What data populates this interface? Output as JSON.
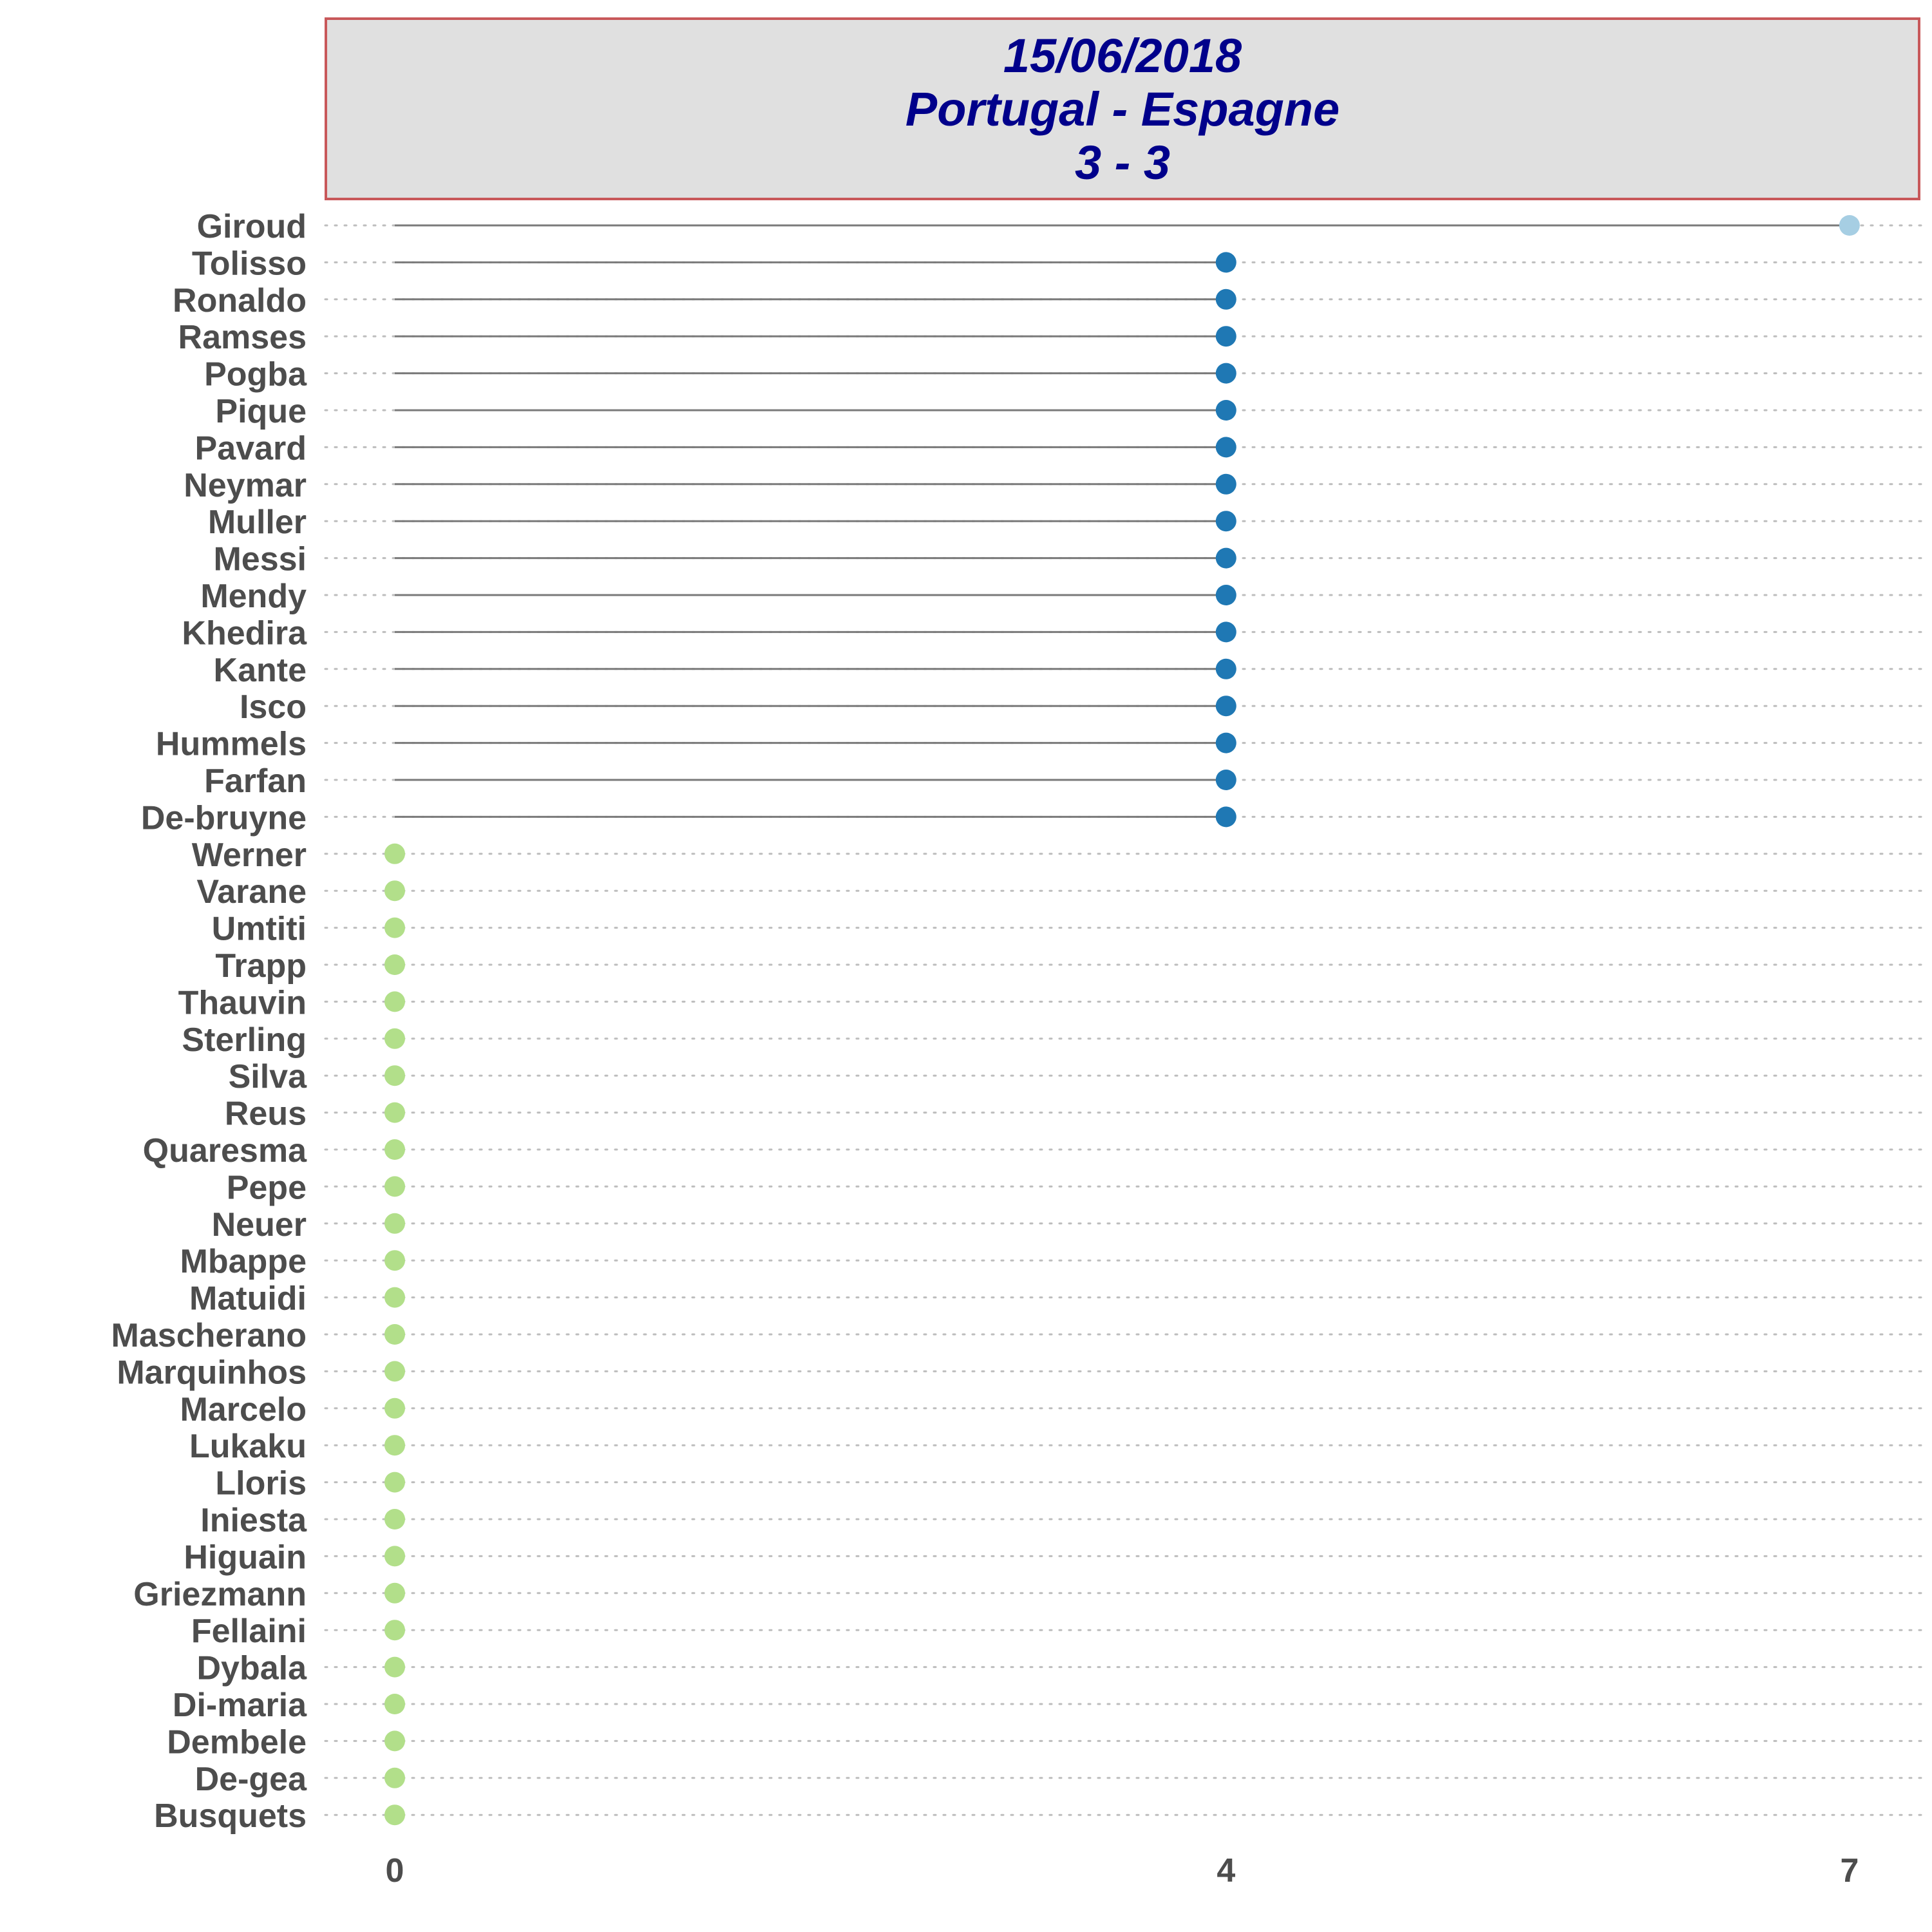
{
  "title": {
    "date": "15/06/2018",
    "match": "Portugal - Espagne",
    "score": "3 - 3"
  },
  "colors": {
    "high": "#a6cee3",
    "mid": "#1f78b4",
    "zero": "#b2df8a",
    "stem": "#7a7a7a",
    "grid": "#bdbdbd",
    "title_text": "#00008b",
    "title_bg": "#e0e0e0",
    "title_border": "#c8585a",
    "axis_text": "#4d4d4d"
  },
  "chart_data": {
    "type": "lollipop",
    "orientation": "horizontal",
    "xlim": [
      0,
      7
    ],
    "xticks": [
      "0",
      "4",
      "7"
    ],
    "grid": "dotted-horizontal",
    "legend": "none",
    "categories": [
      "Giroud",
      "Tolisso",
      "Ronaldo",
      "Ramses",
      "Pogba",
      "Pique",
      "Pavard",
      "Neymar",
      "Muller",
      "Messi",
      "Mendy",
      "Khedira",
      "Kante",
      "Isco",
      "Hummels",
      "Farfan",
      "De-bruyne",
      "Werner",
      "Varane",
      "Umtiti",
      "Trapp",
      "Thauvin",
      "Sterling",
      "Silva",
      "Reus",
      "Quaresma",
      "Pepe",
      "Neuer",
      "Mbappe",
      "Matuidi",
      "Mascherano",
      "Marquinhos",
      "Marcelo",
      "Lukaku",
      "Lloris",
      "Iniesta",
      "Higuain",
      "Griezmann",
      "Fellaini",
      "Dybala",
      "Di-maria",
      "Dembele",
      "De-gea",
      "Busquets"
    ],
    "values": [
      7,
      4,
      4,
      4,
      4,
      4,
      4,
      4,
      4,
      4,
      4,
      4,
      4,
      4,
      4,
      4,
      4,
      0,
      0,
      0,
      0,
      0,
      0,
      0,
      0,
      0,
      0,
      0,
      0,
      0,
      0,
      0,
      0,
      0,
      0,
      0,
      0,
      0,
      0,
      0,
      0,
      0,
      0,
      0
    ]
  }
}
